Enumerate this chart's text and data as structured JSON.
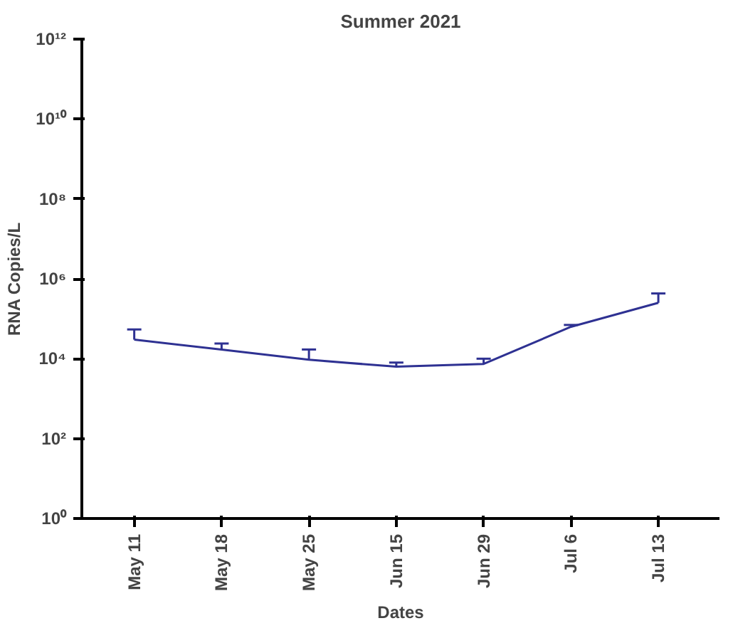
{
  "chart_data": {
    "type": "line",
    "title": "Summer 2021",
    "xlabel": "Dates",
    "ylabel": "RNA Copies/L",
    "categories": [
      "May 11",
      "May 18",
      "May 25",
      "Jun 15",
      "Jun 29",
      "Jul 6",
      "Jul 13"
    ],
    "series": [
      {
        "color": "#2e3192",
        "values": [
          30000,
          17000,
          9400,
          6300,
          7400,
          63000,
          250000
        ],
        "errors": [
          [
            30000,
            54000
          ],
          [
            17000,
            24000
          ],
          [
            9400,
            17000
          ],
          [
            6300,
            8000
          ],
          [
            7400,
            10000
          ],
          [
            63000,
            70000
          ],
          [
            250000,
            430000
          ]
        ]
      }
    ],
    "log": "y",
    "ylim": [
      1,
      1000000000000
    ],
    "yticks": [
      {
        "value": 1,
        "label": "10⁰"
      },
      {
        "value": 100,
        "label": "10²"
      },
      {
        "value": 10000,
        "label": "10⁴"
      },
      {
        "value": 1000000,
        "label": "10⁶"
      },
      {
        "value": 100000000,
        "label": "10⁸"
      },
      {
        "value": 10000000000,
        "label": "10¹⁰"
      },
      {
        "value": 1000000000000,
        "label": "10¹²"
      }
    ],
    "grid": false,
    "marker": "none",
    "line_style": "solid"
  }
}
